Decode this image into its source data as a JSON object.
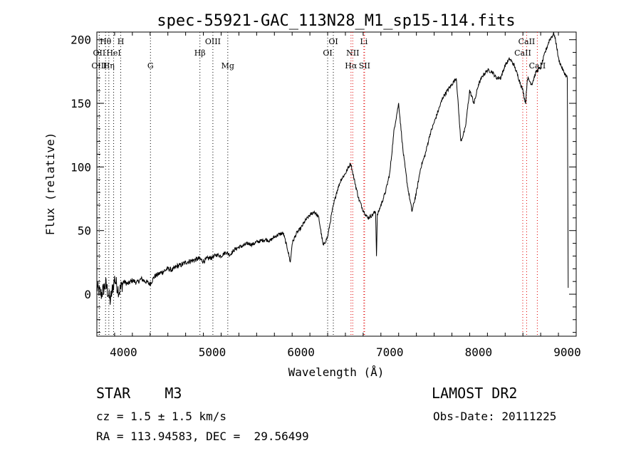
{
  "chart_data": {
    "type": "line",
    "title": "spec-55921-GAC_113N28_M1_sp15-114.fits",
    "xlabel": "Wavelength (Å)",
    "ylabel": "Flux (relative)",
    "xlim": [
      3700,
      9100
    ],
    "ylim": [
      -33,
      206
    ],
    "x_ticks": [
      4000,
      5000,
      6000,
      7000,
      8000,
      9000
    ],
    "y_ticks": [
      0,
      50,
      100,
      150,
      200
    ],
    "series": [
      {
        "name": "spectrum",
        "x": [
          3700,
          3750,
          3800,
          3850,
          3900,
          3950,
          4000,
          4050,
          4100,
          4150,
          4200,
          4250,
          4300,
          4350,
          4400,
          4450,
          4500,
          4550,
          4600,
          4650,
          4700,
          4750,
          4800,
          4850,
          4900,
          4950,
          5000,
          5050,
          5100,
          5150,
          5200,
          5250,
          5300,
          5350,
          5400,
          5450,
          5500,
          5550,
          5600,
          5650,
          5700,
          5750,
          5800,
          5850,
          5880,
          5900,
          5950,
          6000,
          6050,
          6100,
          6150,
          6200,
          6250,
          6300,
          6350,
          6400,
          6450,
          6500,
          6560,
          6600,
          6650,
          6700,
          6750,
          6800,
          6840,
          6850,
          6860,
          6900,
          6950,
          7000,
          7050,
          7100,
          7150,
          7200,
          7250,
          7300,
          7350,
          7400,
          7450,
          7500,
          7550,
          7600,
          7650,
          7700,
          7750,
          7800,
          7850,
          7900,
          7950,
          8000,
          8050,
          8100,
          8150,
          8200,
          8250,
          8300,
          8350,
          8400,
          8450,
          8500,
          8530,
          8550,
          8600,
          8650,
          8700,
          8750,
          8800,
          8850,
          8880,
          8900,
          8950,
          9000,
          9010
        ],
        "flux": [
          5,
          0,
          8,
          -5,
          12,
          2,
          10,
          8,
          11,
          9,
          12,
          10,
          8,
          14,
          16,
          18,
          20,
          19,
          22,
          23,
          25,
          26,
          27,
          28,
          26,
          28,
          29,
          31,
          30,
          33,
          31,
          35,
          37,
          38,
          40,
          39,
          41,
          42,
          43,
          42,
          45,
          47,
          48,
          35,
          25,
          40,
          48,
          52,
          58,
          62,
          65,
          60,
          38,
          45,
          65,
          80,
          90,
          95,
          103,
          90,
          75,
          66,
          60,
          62,
          65,
          30,
          62,
          70,
          80,
          95,
          130,
          150,
          112,
          85,
          65,
          80,
          100,
          110,
          125,
          135,
          145,
          155,
          160,
          165,
          170,
          120,
          130,
          160,
          150,
          165,
          172,
          176,
          175,
          170,
          170,
          180,
          185,
          180,
          170,
          160,
          150,
          170,
          165,
          175,
          178,
          190,
          200,
          205,
          195,
          185,
          176,
          170,
          5
        ]
      }
    ],
    "line_markers": [
      {
        "label": "Hθ",
        "wavelength": 3798,
        "row": 1
      },
      {
        "label": "H",
        "wavelength": 3969,
        "row": 1
      },
      {
        "label": "OII",
        "wavelength": 3727,
        "row": 2
      },
      {
        "label": "HeI",
        "wavelength": 3889,
        "row": 2
      },
      {
        "label": "OIII",
        "wavelength": 3727,
        "row": 3
      },
      {
        "label": "Hη",
        "wavelength": 3835,
        "row": 3
      },
      {
        "label": "G",
        "wavelength": 4304,
        "row": 3
      },
      {
        "label": "OIII",
        "wavelength": 5007,
        "row": 1
      },
      {
        "label": "Hβ",
        "wavelength": 4861,
        "row": 2
      },
      {
        "label": "Mg",
        "wavelength": 5175,
        "row": 3
      },
      {
        "label": "OI",
        "wavelength": 6364,
        "row": 1
      },
      {
        "label": "OI",
        "wavelength": 6300,
        "row": 2
      },
      {
        "label": "Li",
        "wavelength": 6708,
        "row": 1
      },
      {
        "label": "NII",
        "wavelength": 6583,
        "row": 2
      },
      {
        "label": "Hα",
        "wavelength": 6563,
        "row": 3
      },
      {
        "label": "SII",
        "wavelength": 6716,
        "row": 3
      },
      {
        "label": "CaII",
        "wavelength": 8542,
        "row": 1
      },
      {
        "label": "CaII",
        "wavelength": 8498,
        "row": 2
      },
      {
        "label": "CaII",
        "wavelength": 8662,
        "row": 3
      }
    ]
  },
  "info": {
    "star_type": "STAR    M3",
    "survey": "LAMOST DR2",
    "cz": "cz = 1.5 ± 1.5 km/s",
    "obs_date": "Obs-Date: 20111225",
    "coords": "RA = 113.94583, DEC =  29.56499"
  },
  "colors": {
    "axis": "#000000",
    "spectrum": "#000000",
    "marker_black": "#000000",
    "marker_red": "#e00000",
    "background": "#ffffff"
  }
}
